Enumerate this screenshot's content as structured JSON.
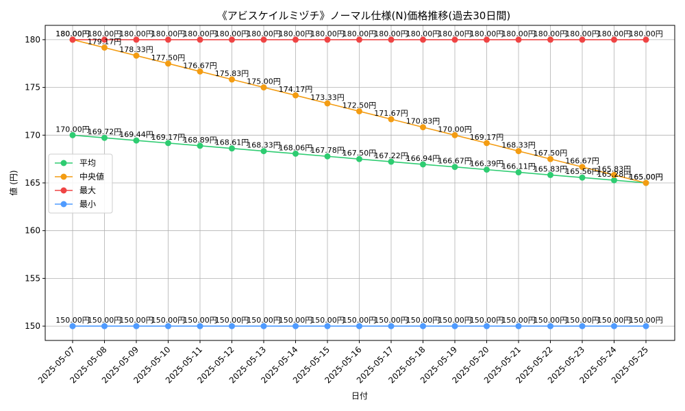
{
  "chart_data": {
    "type": "line",
    "title": "《アビスケイルミヅチ》ノーマル仕様(N)価格推移(過去30日間)",
    "xlabel": "日付",
    "ylabel": "値 (円)",
    "categories": [
      "2025-05-07",
      "2025-05-08",
      "2025-05-09",
      "2025-05-10",
      "2025-05-11",
      "2025-05-12",
      "2025-05-13",
      "2025-05-14",
      "2025-05-15",
      "2025-05-16",
      "2025-05-17",
      "2025-05-18",
      "2025-05-19",
      "2025-05-20",
      "2025-05-21",
      "2025-05-22",
      "2025-05-23",
      "2025-05-24",
      "2025-05-25"
    ],
    "ylim": [
      148.5,
      181.5
    ],
    "yticks": [
      150,
      155,
      160,
      165,
      170,
      175,
      180
    ],
    "grid": true,
    "legend_position": "center-left",
    "value_suffix": "円",
    "series": [
      {
        "name": "平均",
        "color": "#2ecc71",
        "values": [
          170.0,
          169.72,
          169.44,
          169.17,
          168.89,
          168.61,
          168.33,
          168.06,
          167.78,
          167.5,
          167.22,
          166.94,
          166.67,
          166.39,
          166.11,
          165.83,
          165.56,
          165.28,
          165.0
        ]
      },
      {
        "name": "中央値",
        "color": "#f39c12",
        "values": [
          180.0,
          179.17,
          178.33,
          177.5,
          176.67,
          175.83,
          175.0,
          174.17,
          173.33,
          172.5,
          171.67,
          170.83,
          170.0,
          169.17,
          168.33,
          167.5,
          166.67,
          165.83,
          165.0
        ]
      },
      {
        "name": "最大",
        "color": "#ef4444",
        "values": [
          180.0,
          180.0,
          180.0,
          180.0,
          180.0,
          180.0,
          180.0,
          180.0,
          180.0,
          180.0,
          180.0,
          180.0,
          180.0,
          180.0,
          180.0,
          180.0,
          180.0,
          180.0,
          180.0
        ]
      },
      {
        "name": "最小",
        "color": "#4f9bff",
        "values": [
          150.0,
          150.0,
          150.0,
          150.0,
          150.0,
          150.0,
          150.0,
          150.0,
          150.0,
          150.0,
          150.0,
          150.0,
          150.0,
          150.0,
          150.0,
          150.0,
          150.0,
          150.0,
          150.0
        ]
      }
    ]
  }
}
